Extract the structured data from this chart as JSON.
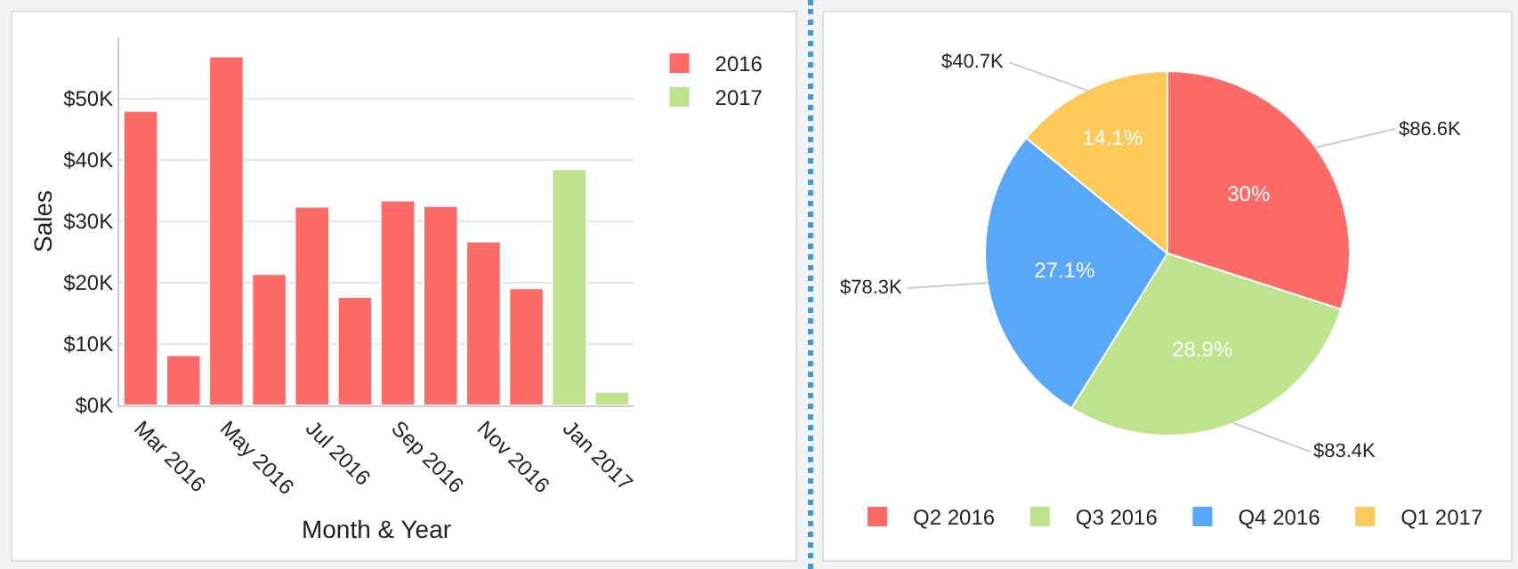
{
  "chart_data": [
    {
      "type": "bar",
      "xlabel": "Month & Year",
      "ylabel": "Sales",
      "categories": [
        "Mar 2016",
        null,
        "May 2016",
        null,
        "Jul 2016",
        null,
        "Sep 2016",
        null,
        "Nov 2016",
        null,
        "Jan 2017",
        null
      ],
      "series": [
        {
          "name": "2016",
          "color": "#fd6a68",
          "values": [
            48,
            8.2,
            56.9,
            21.4,
            32.4,
            17.7,
            33.4,
            32.5,
            26.7,
            19.1,
            null,
            null
          ]
        },
        {
          "name": "2017",
          "color": "#bde38c",
          "values": [
            null,
            null,
            null,
            null,
            null,
            null,
            null,
            null,
            null,
            null,
            38.5,
            2.2
          ]
        }
      ],
      "ylim": [
        0,
        60
      ],
      "yticks": [
        {
          "value": 0,
          "label": "$0K"
        },
        {
          "value": 10,
          "label": "$10K"
        },
        {
          "value": 20,
          "label": "$20K"
        },
        {
          "value": 30,
          "label": "$30K"
        },
        {
          "value": 40,
          "label": "$40K"
        },
        {
          "value": 50,
          "label": "$50K"
        }
      ],
      "grid": "y",
      "legend": "top right"
    },
    {
      "type": "pie",
      "categories": [
        "Q2 2016",
        "Q3 2016",
        "Q4 2016",
        "Q1 2017"
      ],
      "values": [
        86.6,
        83.4,
        78.3,
        40.7
      ],
      "colors": [
        "#fd6a68",
        "#bde38c",
        "#57a8fb",
        "#fdca5a"
      ],
      "value_labels": [
        "$86.6K",
        "$83.4K",
        "$78.3K",
        "$40.7K"
      ],
      "annotations": [
        "30%",
        "28.9%",
        "27.1%",
        "14.1%"
      ],
      "legend": "bottom"
    }
  ]
}
